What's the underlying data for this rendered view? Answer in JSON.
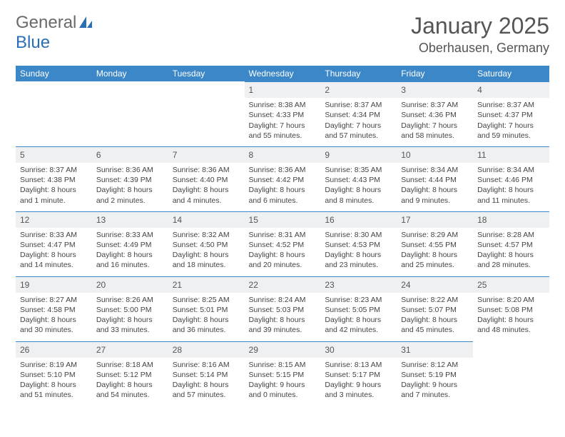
{
  "logo": {
    "text1": "General",
    "text2": "Blue",
    "accent": "#2a6fb5",
    "gray": "#6a6a6a"
  },
  "title": "January 2025",
  "location": "Oberhausen, Germany",
  "colors": {
    "header_bg": "#3c87c7",
    "header_text": "#ffffff",
    "daynum_bg": "#eef0f2",
    "border": "#3c87c7",
    "text": "#444444",
    "background": "#ffffff"
  },
  "weekdays": [
    "Sunday",
    "Monday",
    "Tuesday",
    "Wednesday",
    "Thursday",
    "Friday",
    "Saturday"
  ],
  "weeks": [
    [
      null,
      null,
      null,
      {
        "n": "1",
        "sr": "Sunrise: 8:38 AM",
        "ss": "Sunset: 4:33 PM",
        "dl": "Daylight: 7 hours and 55 minutes."
      },
      {
        "n": "2",
        "sr": "Sunrise: 8:37 AM",
        "ss": "Sunset: 4:34 PM",
        "dl": "Daylight: 7 hours and 57 minutes."
      },
      {
        "n": "3",
        "sr": "Sunrise: 8:37 AM",
        "ss": "Sunset: 4:36 PM",
        "dl": "Daylight: 7 hours and 58 minutes."
      },
      {
        "n": "4",
        "sr": "Sunrise: 8:37 AM",
        "ss": "Sunset: 4:37 PM",
        "dl": "Daylight: 7 hours and 59 minutes."
      }
    ],
    [
      {
        "n": "5",
        "sr": "Sunrise: 8:37 AM",
        "ss": "Sunset: 4:38 PM",
        "dl": "Daylight: 8 hours and 1 minute."
      },
      {
        "n": "6",
        "sr": "Sunrise: 8:36 AM",
        "ss": "Sunset: 4:39 PM",
        "dl": "Daylight: 8 hours and 2 minutes."
      },
      {
        "n": "7",
        "sr": "Sunrise: 8:36 AM",
        "ss": "Sunset: 4:40 PM",
        "dl": "Daylight: 8 hours and 4 minutes."
      },
      {
        "n": "8",
        "sr": "Sunrise: 8:36 AM",
        "ss": "Sunset: 4:42 PM",
        "dl": "Daylight: 8 hours and 6 minutes."
      },
      {
        "n": "9",
        "sr": "Sunrise: 8:35 AM",
        "ss": "Sunset: 4:43 PM",
        "dl": "Daylight: 8 hours and 8 minutes."
      },
      {
        "n": "10",
        "sr": "Sunrise: 8:34 AM",
        "ss": "Sunset: 4:44 PM",
        "dl": "Daylight: 8 hours and 9 minutes."
      },
      {
        "n": "11",
        "sr": "Sunrise: 8:34 AM",
        "ss": "Sunset: 4:46 PM",
        "dl": "Daylight: 8 hours and 11 minutes."
      }
    ],
    [
      {
        "n": "12",
        "sr": "Sunrise: 8:33 AM",
        "ss": "Sunset: 4:47 PM",
        "dl": "Daylight: 8 hours and 14 minutes."
      },
      {
        "n": "13",
        "sr": "Sunrise: 8:33 AM",
        "ss": "Sunset: 4:49 PM",
        "dl": "Daylight: 8 hours and 16 minutes."
      },
      {
        "n": "14",
        "sr": "Sunrise: 8:32 AM",
        "ss": "Sunset: 4:50 PM",
        "dl": "Daylight: 8 hours and 18 minutes."
      },
      {
        "n": "15",
        "sr": "Sunrise: 8:31 AM",
        "ss": "Sunset: 4:52 PM",
        "dl": "Daylight: 8 hours and 20 minutes."
      },
      {
        "n": "16",
        "sr": "Sunrise: 8:30 AM",
        "ss": "Sunset: 4:53 PM",
        "dl": "Daylight: 8 hours and 23 minutes."
      },
      {
        "n": "17",
        "sr": "Sunrise: 8:29 AM",
        "ss": "Sunset: 4:55 PM",
        "dl": "Daylight: 8 hours and 25 minutes."
      },
      {
        "n": "18",
        "sr": "Sunrise: 8:28 AM",
        "ss": "Sunset: 4:57 PM",
        "dl": "Daylight: 8 hours and 28 minutes."
      }
    ],
    [
      {
        "n": "19",
        "sr": "Sunrise: 8:27 AM",
        "ss": "Sunset: 4:58 PM",
        "dl": "Daylight: 8 hours and 30 minutes."
      },
      {
        "n": "20",
        "sr": "Sunrise: 8:26 AM",
        "ss": "Sunset: 5:00 PM",
        "dl": "Daylight: 8 hours and 33 minutes."
      },
      {
        "n": "21",
        "sr": "Sunrise: 8:25 AM",
        "ss": "Sunset: 5:01 PM",
        "dl": "Daylight: 8 hours and 36 minutes."
      },
      {
        "n": "22",
        "sr": "Sunrise: 8:24 AM",
        "ss": "Sunset: 5:03 PM",
        "dl": "Daylight: 8 hours and 39 minutes."
      },
      {
        "n": "23",
        "sr": "Sunrise: 8:23 AM",
        "ss": "Sunset: 5:05 PM",
        "dl": "Daylight: 8 hours and 42 minutes."
      },
      {
        "n": "24",
        "sr": "Sunrise: 8:22 AM",
        "ss": "Sunset: 5:07 PM",
        "dl": "Daylight: 8 hours and 45 minutes."
      },
      {
        "n": "25",
        "sr": "Sunrise: 8:20 AM",
        "ss": "Sunset: 5:08 PM",
        "dl": "Daylight: 8 hours and 48 minutes."
      }
    ],
    [
      {
        "n": "26",
        "sr": "Sunrise: 8:19 AM",
        "ss": "Sunset: 5:10 PM",
        "dl": "Daylight: 8 hours and 51 minutes."
      },
      {
        "n": "27",
        "sr": "Sunrise: 8:18 AM",
        "ss": "Sunset: 5:12 PM",
        "dl": "Daylight: 8 hours and 54 minutes."
      },
      {
        "n": "28",
        "sr": "Sunrise: 8:16 AM",
        "ss": "Sunset: 5:14 PM",
        "dl": "Daylight: 8 hours and 57 minutes."
      },
      {
        "n": "29",
        "sr": "Sunrise: 8:15 AM",
        "ss": "Sunset: 5:15 PM",
        "dl": "Daylight: 9 hours and 0 minutes."
      },
      {
        "n": "30",
        "sr": "Sunrise: 8:13 AM",
        "ss": "Sunset: 5:17 PM",
        "dl": "Daylight: 9 hours and 3 minutes."
      },
      {
        "n": "31",
        "sr": "Sunrise: 8:12 AM",
        "ss": "Sunset: 5:19 PM",
        "dl": "Daylight: 9 hours and 7 minutes."
      },
      null
    ]
  ]
}
